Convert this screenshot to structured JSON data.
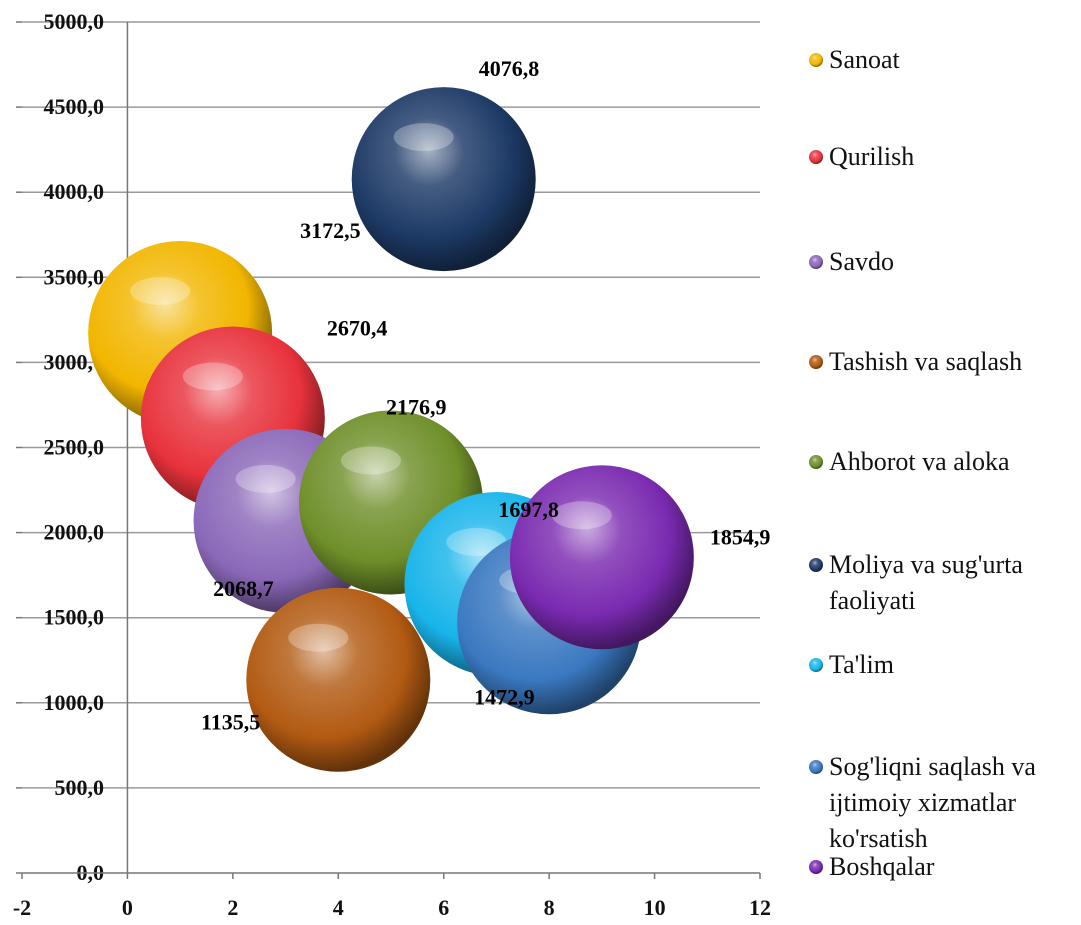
{
  "chart_data": {
    "type": "bubble",
    "xlim": [
      -2,
      12
    ],
    "ylim": [
      0,
      5000
    ],
    "x_ticks": [
      "-2",
      "0",
      "2",
      "4",
      "6",
      "8",
      "10",
      "12"
    ],
    "y_ticks": [
      "0,0",
      "500,0",
      "1000,0",
      "1500,0",
      "2000,0",
      "2500,0",
      "3000,0",
      "3500,0",
      "4000,0",
      "4500,0",
      "5000,0"
    ],
    "grid": "horizontal",
    "legend_position": "right",
    "series": [
      {
        "name": "Sanoat",
        "x": 1,
        "y": 3172.5,
        "label": "3172,5",
        "color": "#f2b600"
      },
      {
        "name": "Qurilish",
        "x": 2,
        "y": 2670.4,
        "label": "2670,4",
        "color": "#e8323c"
      },
      {
        "name": "Savdo",
        "x": 3,
        "y": 2068.7,
        "label": "2068,7",
        "color": "#8a68b8"
      },
      {
        "name": "Tashish va saqlash",
        "x": 4,
        "y": 1135.5,
        "label": "1135,5",
        "color": "#b25a12"
      },
      {
        "name": "Ahborot va aloka",
        "x": 5,
        "y": 2176.9,
        "label": "2176,9",
        "color": "#6f8f2a"
      },
      {
        "name": "Moliya va sug'urta faoliyati",
        "x": 6,
        "y": 4076.8,
        "label": "4076,8",
        "color": "#1d3a66"
      },
      {
        "name": "Ta'lim",
        "x": 7,
        "y": 1697.8,
        "label": "1697,8",
        "color": "#18b4ea"
      },
      {
        "name": "Sog'liqni saqlash va ijtimoiy xizmatlar ko'rsatish",
        "x": 8,
        "y": 1472.9,
        "label": "1472,9",
        "color": "#3a78c0"
      },
      {
        "name": "Boshqalar",
        "x": 9,
        "y": 1854.9,
        "label": "1854,9",
        "color": "#7a2ab0"
      }
    ]
  }
}
